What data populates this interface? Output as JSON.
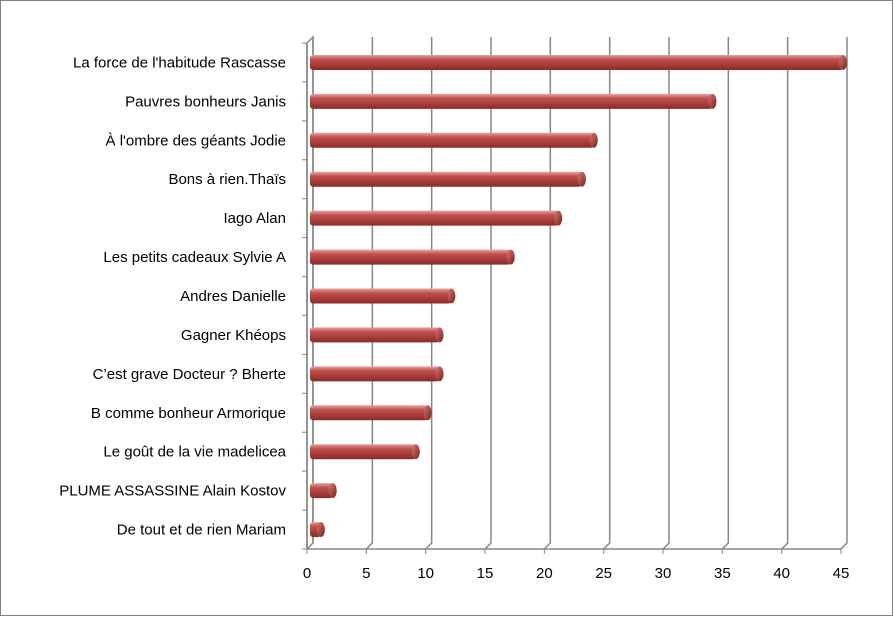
{
  "chart_data": {
    "type": "bar",
    "orientation": "horizontal",
    "categories": [
      "La force de l'habitude Rascasse",
      "Pauvres bonheurs Janis",
      "À l'ombre des géants  Jodie",
      "Bons à rien.Thaïs",
      "Iago Alan",
      "Les petits cadeaux Sylvie A",
      "Andres Danielle",
      "Gagner Khéops",
      "C’est grave Docteur ? Bherte",
      "B comme bonheur Armorique",
      "Le goût de la vie madelicea",
      "PLUME ASSASSINE Alain Kostov",
      "De tout et de rien Mariam"
    ],
    "values": [
      45,
      34,
      24,
      23,
      21,
      17,
      12,
      11,
      11,
      10,
      9,
      2,
      1
    ],
    "xlim": [
      0,
      45
    ],
    "xticks": [
      "0",
      "5",
      "10",
      "15",
      "20",
      "25",
      "30",
      "35",
      "40",
      "45"
    ],
    "grid": true,
    "bar_color": "#c0504d"
  }
}
